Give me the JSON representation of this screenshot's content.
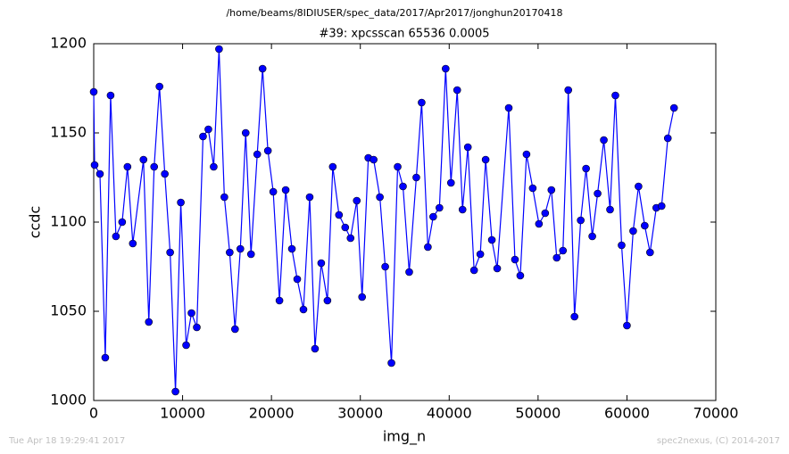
{
  "chart_data": {
    "type": "line",
    "title": "/home/beams/8IDIUSER/spec_data/2017/Apr2017/jonghun20170418",
    "subtitle": "#39: xpcsscan 65536 0.0005",
    "xlabel": "img_n",
    "ylabel": "ccdc",
    "footer_left": "Tue Apr 18 19:29:41 2017",
    "footer_right": "spec2nexus, (C) 2014-2017",
    "xlim": [
      0,
      70000
    ],
    "xticks": [
      0,
      10000,
      20000,
      30000,
      40000,
      50000,
      60000,
      70000
    ],
    "ylim": [
      1000,
      1200
    ],
    "yticks": [
      1000,
      1050,
      1100,
      1150,
      1200
    ],
    "grid": false,
    "x": [
      0,
      100,
      700,
      1300,
      1900,
      2500,
      3200,
      3800,
      4400,
      5600,
      6200,
      6800,
      7400,
      8000,
      8600,
      9200,
      9800,
      10400,
      11000,
      11600,
      12300,
      12900,
      13500,
      14100,
      14700,
      15300,
      15900,
      16500,
      17100,
      17700,
      18400,
      19000,
      19600,
      20200,
      20900,
      21600,
      22300,
      22900,
      23600,
      24300,
      24900,
      25600,
      26300,
      26900,
      27600,
      28300,
      28900,
      29600,
      30200,
      30900,
      31500,
      32200,
      32800,
      33500,
      34200,
      34800,
      35500,
      36300,
      36900,
      37600,
      38200,
      38900,
      39600,
      40200,
      40900,
      41500,
      42100,
      42800,
      43500,
      44100,
      44800,
      45400,
      46700,
      47400,
      48000,
      48700,
      49400,
      50100,
      50800,
      51500,
      52100,
      52800,
      53400,
      54100,
      54800,
      55400,
      56100,
      56700,
      57400,
      58100,
      58700,
      59400,
      60000,
      60700,
      61300,
      62000,
      62600,
      63300,
      63900,
      64600,
      65300
    ],
    "series": [
      {
        "name": "ccdc",
        "color": "#0000ff",
        "values": [
          1173,
          1132,
          1127,
          1024,
          1171,
          1092,
          1100,
          1131,
          1088,
          1135,
          1044,
          1131,
          1176,
          1127,
          1083,
          1005,
          1111,
          1031,
          1049,
          1041,
          1148,
          1152,
          1131,
          1197,
          1114,
          1083,
          1040,
          1085,
          1150,
          1082,
          1138,
          1186,
          1140,
          1117,
          1056,
          1118,
          1085,
          1068,
          1051,
          1114,
          1029,
          1077,
          1056,
          1131,
          1104,
          1097,
          1091,
          1112,
          1058,
          1136,
          1135,
          1114,
          1075,
          1021,
          1131,
          1120,
          1072,
          1125,
          1167,
          1086,
          1103,
          1108,
          1186,
          1122,
          1174,
          1107,
          1142,
          1073,
          1082,
          1135,
          1090,
          1074,
          1164,
          1079,
          1070,
          1138,
          1119,
          1099,
          1105,
          1118,
          1080,
          1084,
          1174,
          1047,
          1101,
          1130,
          1092,
          1116,
          1146,
          1107,
          1171,
          1087,
          1042,
          1095,
          1120,
          1098,
          1083,
          1108,
          1109,
          1147,
          1164
        ]
      }
    ]
  }
}
